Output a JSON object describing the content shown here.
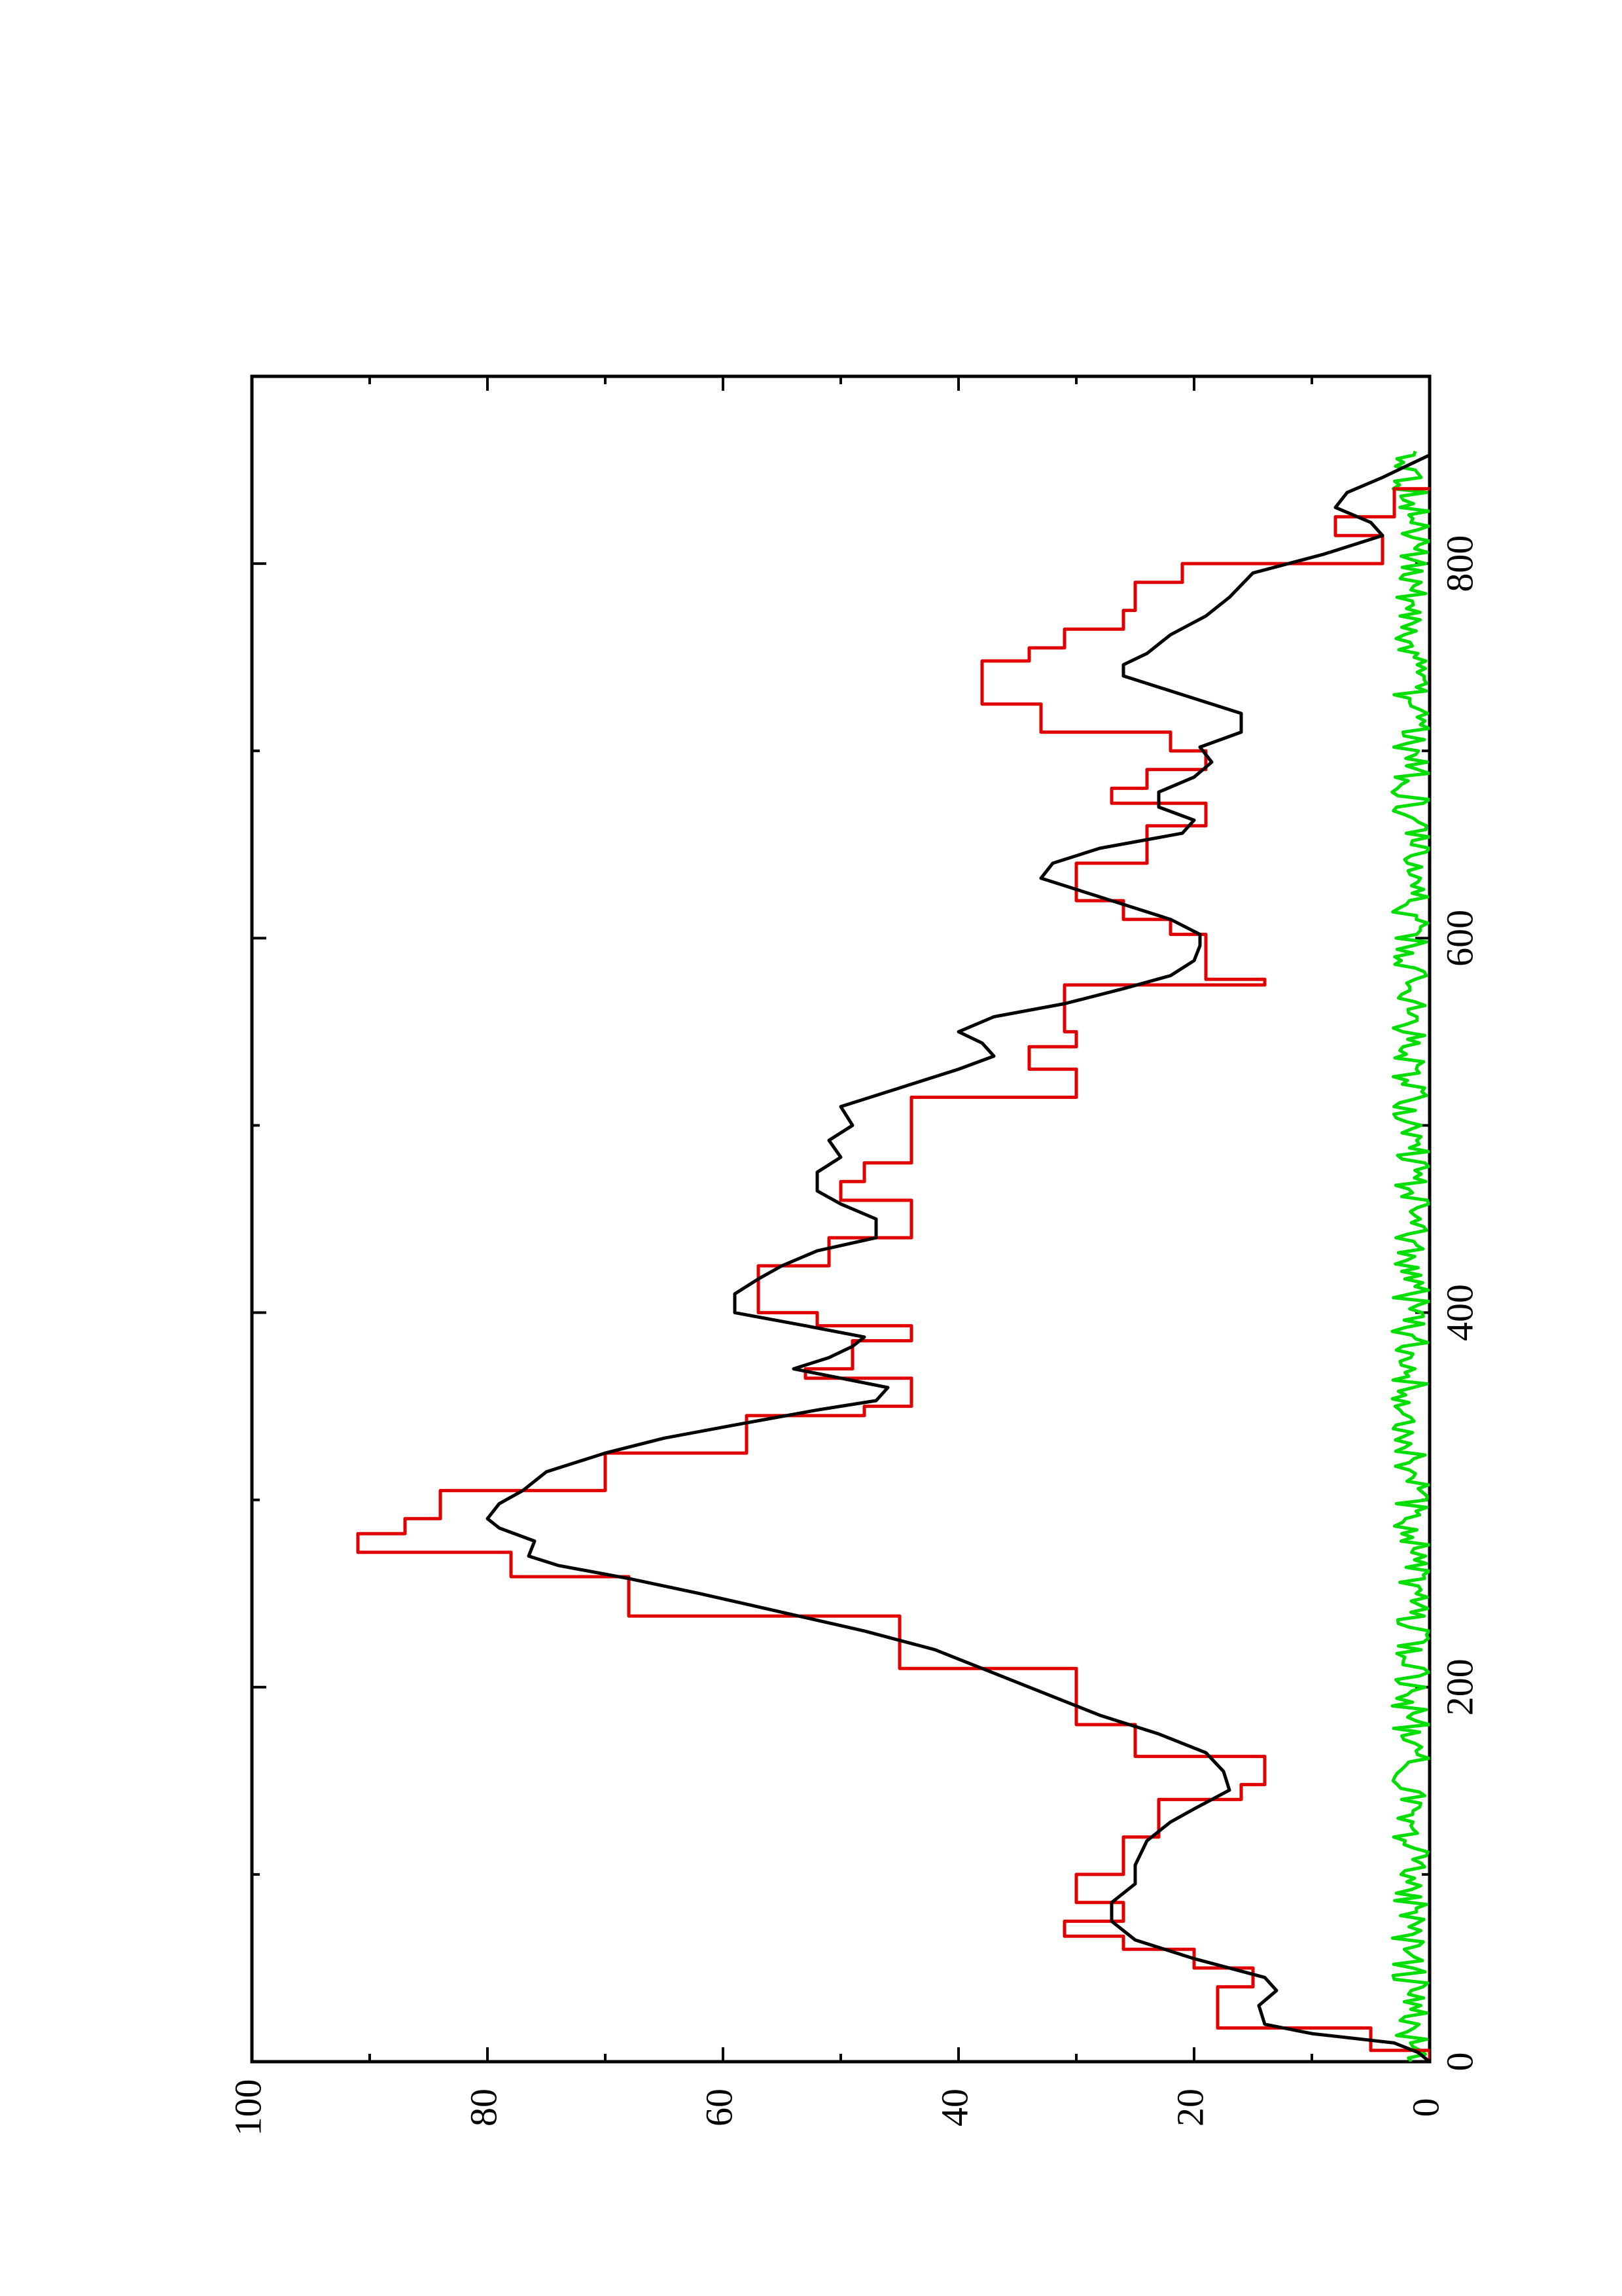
{
  "chart_data": {
    "type": "line",
    "title": "",
    "xlabel": "",
    "ylabel": "",
    "orientation": "rotated-90-ccw",
    "xlim": [
      0,
      900
    ],
    "ylim": [
      0,
      100
    ],
    "x_ticks": [
      0,
      200,
      400,
      600,
      800
    ],
    "x_minor_ticks": [
      100,
      300,
      500,
      700
    ],
    "y_ticks": [
      0,
      20,
      40,
      60,
      80,
      100
    ],
    "y_minor_ticks": [
      10,
      30,
      50,
      70,
      90
    ],
    "grid": false,
    "legend": "none",
    "series": [
      {
        "color": "#000000",
        "points": [
          [
            0,
            0
          ],
          [
            5,
            1
          ],
          [
            10,
            3
          ],
          [
            15,
            10
          ],
          [
            20,
            14
          ],
          [
            30,
            14.5
          ],
          [
            38,
            13
          ],
          [
            45,
            14
          ],
          [
            55,
            20
          ],
          [
            65,
            25
          ],
          [
            75,
            27
          ],
          [
            85,
            27
          ],
          [
            95,
            25
          ],
          [
            105,
            25
          ],
          [
            118,
            24
          ],
          [
            128,
            22
          ],
          [
            135,
            20
          ],
          [
            145,
            17
          ],
          [
            155,
            17.5
          ],
          [
            165,
            19
          ],
          [
            175,
            23
          ],
          [
            185,
            28
          ],
          [
            200,
            34
          ],
          [
            210,
            38
          ],
          [
            220,
            42
          ],
          [
            230,
            48
          ],
          [
            240,
            55
          ],
          [
            250,
            62
          ],
          [
            258,
            68
          ],
          [
            265,
            74
          ],
          [
            270,
            76.5
          ],
          [
            278,
            76
          ],
          [
            285,
            79
          ],
          [
            290,
            80
          ],
          [
            298,
            79
          ],
          [
            305,
            77
          ],
          [
            315,
            75
          ],
          [
            325,
            70
          ],
          [
            333,
            65
          ],
          [
            340,
            59
          ],
          [
            348,
            52
          ],
          [
            353,
            47
          ],
          [
            360,
            46
          ],
          [
            365,
            50
          ],
          [
            370,
            54
          ],
          [
            376,
            51
          ],
          [
            382,
            49
          ],
          [
            387,
            48
          ],
          [
            393,
            53
          ],
          [
            400,
            59
          ],
          [
            410,
            59
          ],
          [
            418,
            57
          ],
          [
            425,
            55
          ],
          [
            433,
            52
          ],
          [
            440,
            47
          ],
          [
            450,
            47
          ],
          [
            458,
            50
          ],
          [
            465,
            52
          ],
          [
            475,
            52
          ],
          [
            483,
            50
          ],
          [
            492,
            51
          ],
          [
            500,
            49
          ],
          [
            510,
            50
          ],
          [
            520,
            45
          ],
          [
            530,
            40
          ],
          [
            537,
            37
          ],
          [
            544,
            38
          ],
          [
            550,
            40
          ],
          [
            558,
            37
          ],
          [
            565,
            31
          ],
          [
            573,
            26
          ],
          [
            580,
            22
          ],
          [
            588,
            20
          ],
          [
            596,
            19.5
          ],
          [
            602,
            19.5
          ],
          [
            610,
            22
          ],
          [
            620,
            27
          ],
          [
            632,
            33
          ],
          [
            640,
            32
          ],
          [
            648,
            28
          ],
          [
            656,
            21
          ],
          [
            663,
            20
          ],
          [
            670,
            23
          ],
          [
            678,
            23
          ],
          [
            686,
            20
          ],
          [
            694,
            18.5
          ],
          [
            702,
            19.5
          ],
          [
            710,
            16
          ],
          [
            720,
            16
          ],
          [
            730,
            21
          ],
          [
            740,
            26
          ],
          [
            746,
            26
          ],
          [
            752,
            24
          ],
          [
            762,
            22
          ],
          [
            772,
            19
          ],
          [
            782,
            17
          ],
          [
            795,
            15
          ],
          [
            805,
            9
          ],
          [
            815,
            4
          ],
          [
            822,
            5
          ],
          [
            830,
            8
          ],
          [
            838,
            7
          ],
          [
            846,
            4
          ],
          [
            852,
            2
          ],
          [
            858,
            0
          ]
        ]
      },
      {
        "color": "#e00000",
        "points": [
          [
            0,
            0
          ],
          [
            6,
            0
          ],
          [
            6,
            5
          ],
          [
            18,
            5
          ],
          [
            18,
            18
          ],
          [
            40,
            18
          ],
          [
            40,
            15
          ],
          [
            50,
            15
          ],
          [
            50,
            20
          ],
          [
            60,
            20
          ],
          [
            60,
            26
          ],
          [
            67,
            26
          ],
          [
            67,
            31
          ],
          [
            75,
            31
          ],
          [
            75,
            26
          ],
          [
            85,
            26
          ],
          [
            85,
            30
          ],
          [
            100,
            30
          ],
          [
            100,
            26
          ],
          [
            120,
            26
          ],
          [
            120,
            23
          ],
          [
            140,
            23
          ],
          [
            140,
            16
          ],
          [
            148,
            16
          ],
          [
            148,
            14
          ],
          [
            163,
            14
          ],
          [
            163,
            25
          ],
          [
            180,
            25
          ],
          [
            180,
            30
          ],
          [
            210,
            30
          ],
          [
            210,
            45
          ],
          [
            238,
            45
          ],
          [
            238,
            68
          ],
          [
            259,
            68
          ],
          [
            259,
            78
          ],
          [
            272,
            78
          ],
          [
            272,
            91
          ],
          [
            282,
            91
          ],
          [
            282,
            87
          ],
          [
            290,
            87
          ],
          [
            290,
            84
          ],
          [
            305,
            84
          ],
          [
            305,
            70
          ],
          [
            325,
            70
          ],
          [
            325,
            58
          ],
          [
            345,
            58
          ],
          [
            345,
            48
          ],
          [
            350,
            48
          ],
          [
            350,
            44
          ],
          [
            365,
            44
          ],
          [
            365,
            53
          ],
          [
            370,
            53
          ],
          [
            370,
            49
          ],
          [
            385,
            49
          ],
          [
            385,
            44
          ],
          [
            393,
            44
          ],
          [
            393,
            52
          ],
          [
            400,
            52
          ],
          [
            400,
            57
          ],
          [
            425,
            57
          ],
          [
            425,
            51
          ],
          [
            440,
            51
          ],
          [
            440,
            44
          ],
          [
            460,
            44
          ],
          [
            460,
            50
          ],
          [
            470,
            50
          ],
          [
            470,
            48
          ],
          [
            480,
            48
          ],
          [
            480,
            44
          ],
          [
            495,
            44
          ],
          [
            495,
            44
          ],
          [
            515,
            44
          ],
          [
            515,
            30
          ],
          [
            530,
            30
          ],
          [
            530,
            34
          ],
          [
            542,
            34
          ],
          [
            542,
            30
          ],
          [
            550,
            30
          ],
          [
            550,
            31
          ],
          [
            575,
            31
          ],
          [
            575,
            14
          ],
          [
            578,
            14
          ],
          [
            578,
            19
          ],
          [
            602,
            19
          ],
          [
            602,
            22
          ],
          [
            610,
            22
          ],
          [
            610,
            26
          ],
          [
            620,
            26
          ],
          [
            620,
            30
          ],
          [
            630,
            30
          ],
          [
            630,
            30
          ],
          [
            640,
            30
          ],
          [
            640,
            24
          ],
          [
            660,
            24
          ],
          [
            660,
            19
          ],
          [
            672,
            19
          ],
          [
            672,
            27
          ],
          [
            680,
            27
          ],
          [
            680,
            24
          ],
          [
            690,
            24
          ],
          [
            690,
            19
          ],
          [
            700,
            19
          ],
          [
            700,
            22
          ],
          [
            710,
            22
          ],
          [
            710,
            33
          ],
          [
            725,
            33
          ],
          [
            725,
            38
          ],
          [
            748,
            38
          ],
          [
            748,
            34
          ],
          [
            755,
            34
          ],
          [
            755,
            31
          ],
          [
            765,
            31
          ],
          [
            765,
            26
          ],
          [
            775,
            26
          ],
          [
            775,
            25
          ],
          [
            790,
            25
          ],
          [
            790,
            21
          ],
          [
            800,
            21
          ],
          [
            800,
            4
          ],
          [
            815,
            4
          ],
          [
            815,
            8
          ],
          [
            825,
            8
          ],
          [
            825,
            3
          ],
          [
            840,
            3
          ],
          [
            840,
            0
          ]
        ]
      },
      {
        "color": "#00dd00",
        "points": "noise"
      }
    ]
  }
}
